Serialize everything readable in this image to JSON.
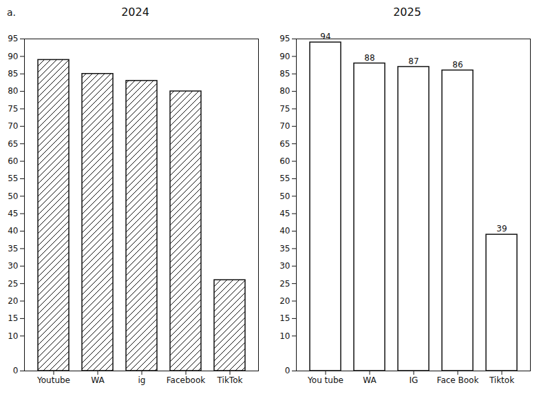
{
  "chart_data": [
    {
      "type": "bar",
      "title": "2024",
      "annotation": "a.",
      "categories": [
        "Youtube",
        "WA",
        "ig",
        "Facebook",
        "TikTok"
      ],
      "values": [
        89,
        85,
        83,
        80,
        26
      ],
      "color": "#111111",
      "ylim": [
        0,
        95
      ],
      "yticks": [
        0,
        10,
        15,
        20,
        25,
        30,
        35,
        40,
        45,
        50,
        55,
        60,
        65,
        70,
        75,
        80,
        85,
        90,
        95
      ],
      "grid": false,
      "data_labels": false
    },
    {
      "type": "bar",
      "title": "2025",
      "categories": [
        "You tube",
        "WA",
        "IG",
        "Face Book",
        "Tiktok"
      ],
      "values": [
        94,
        88,
        87,
        86,
        39
      ],
      "color": "#111111",
      "ylim": [
        0,
        95
      ],
      "yticks": [
        0,
        10,
        15,
        20,
        25,
        30,
        35,
        40,
        45,
        50,
        55,
        60,
        65,
        70,
        75,
        80,
        85,
        90,
        95
      ],
      "grid": false,
      "data_labels": true
    }
  ]
}
